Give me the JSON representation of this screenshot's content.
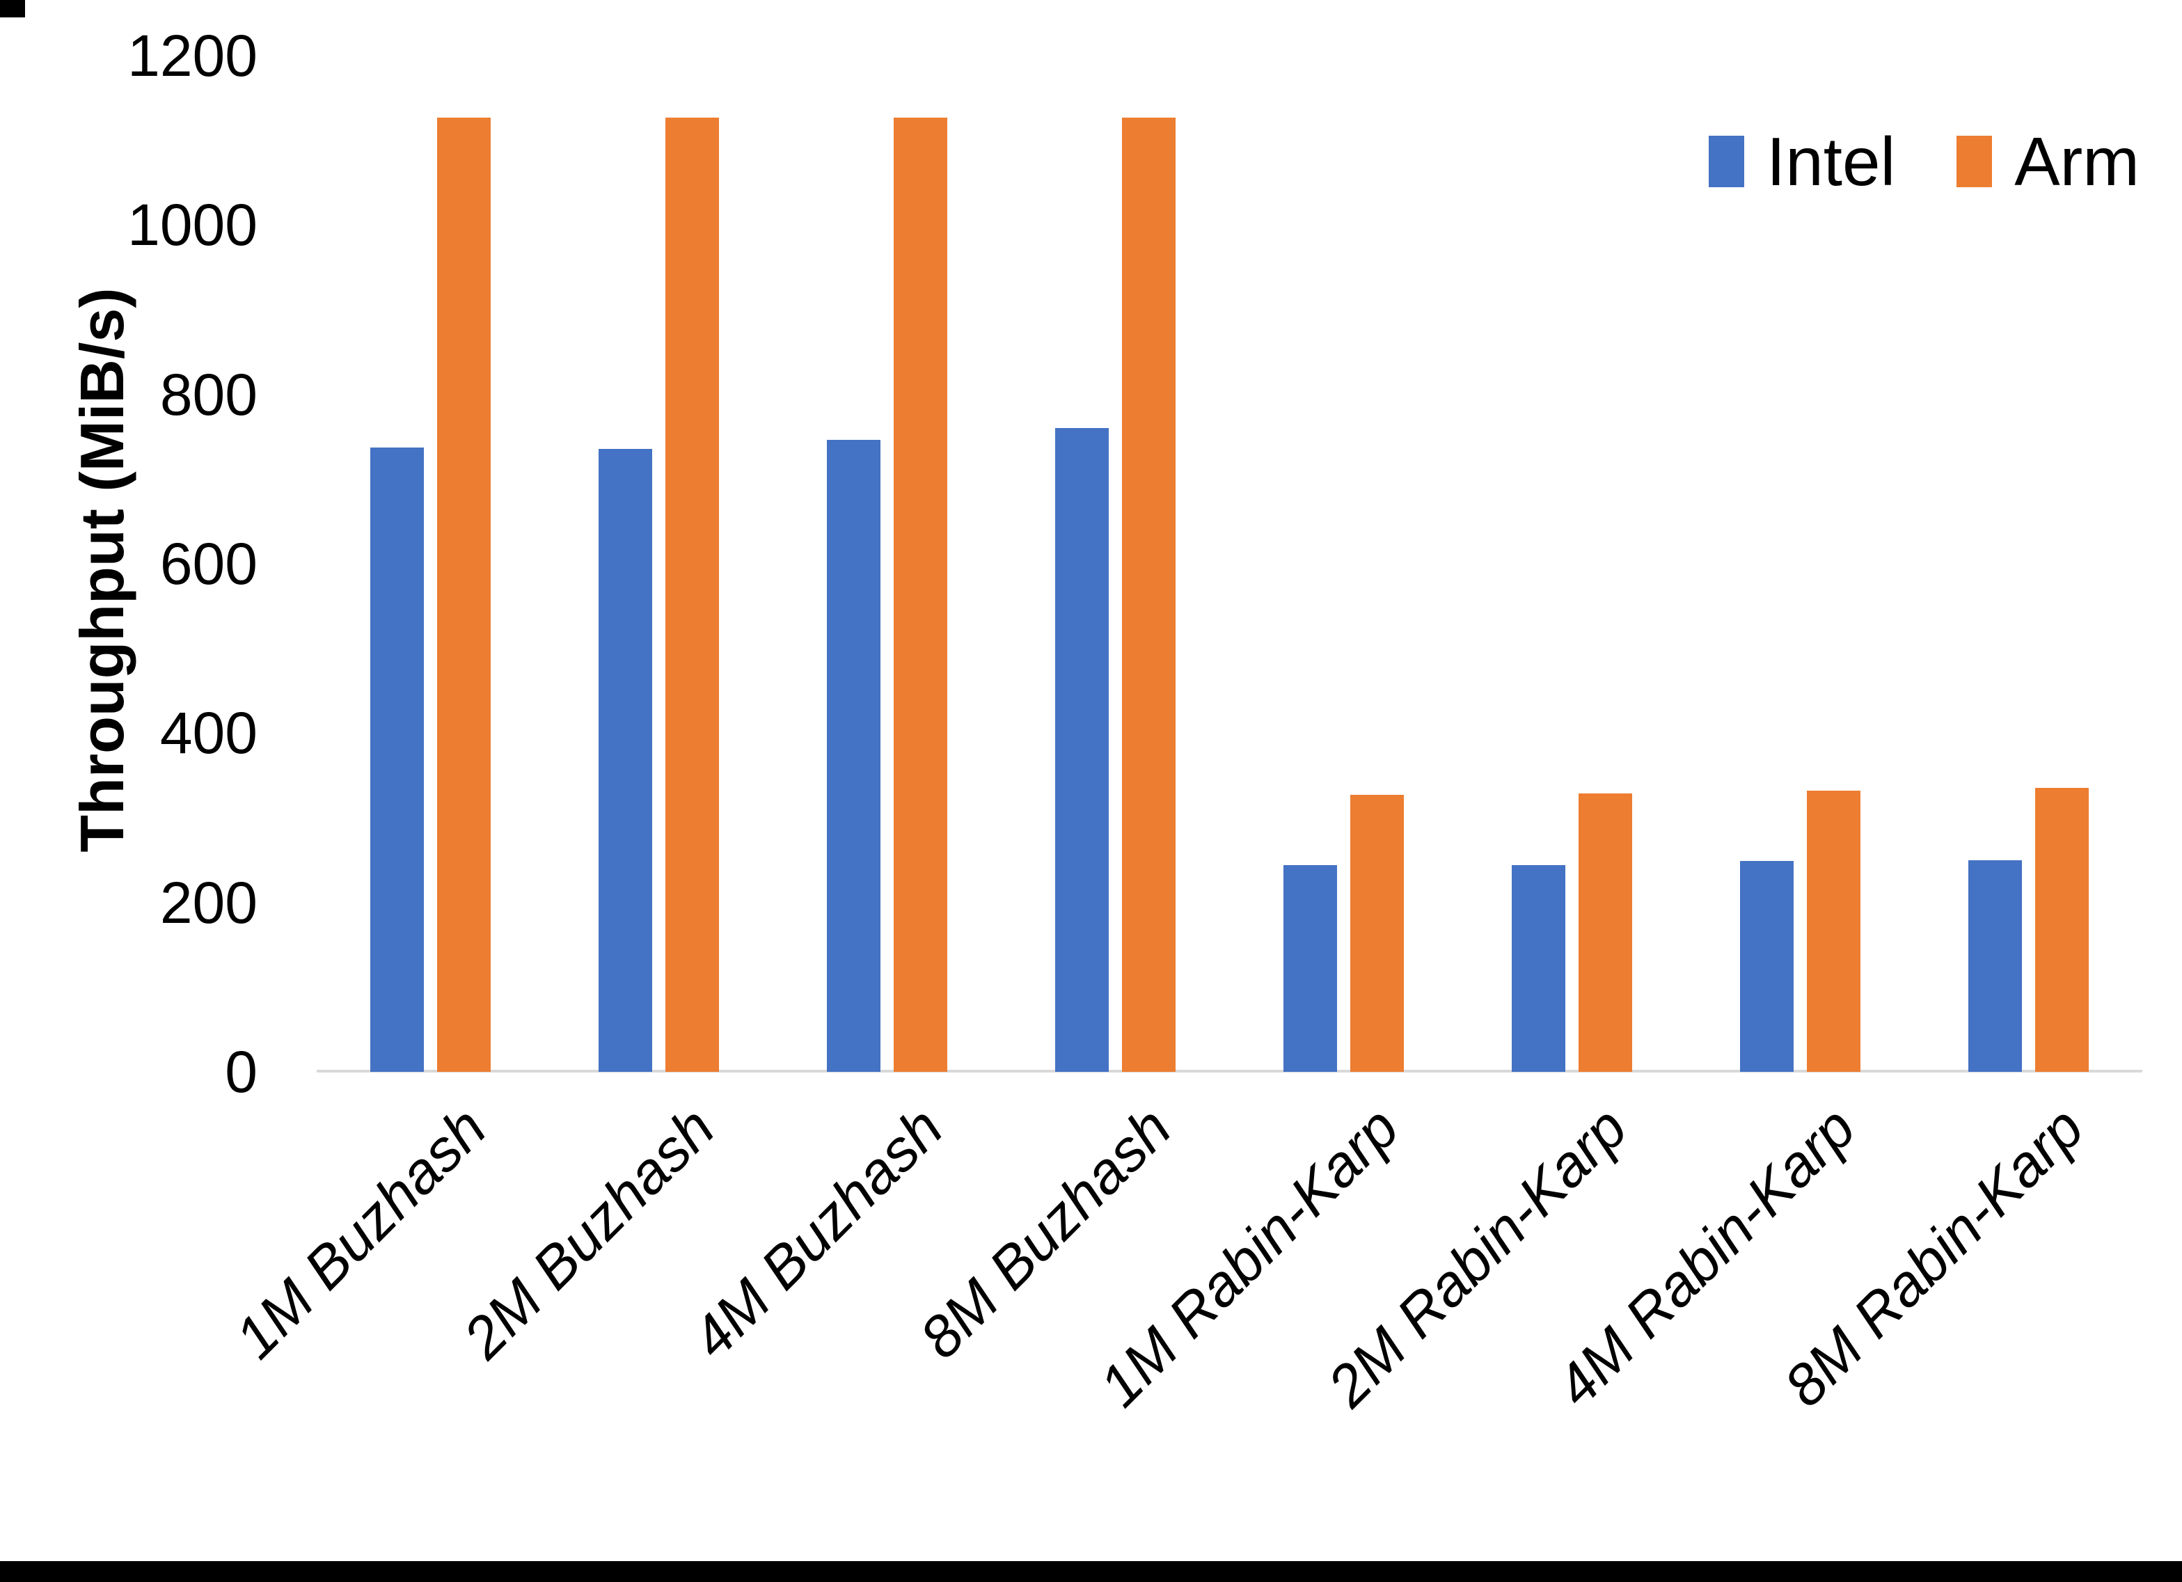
{
  "chart_data": {
    "type": "bar",
    "title": "",
    "ylabel": "Throughput (MiB/s)",
    "xlabel": "",
    "ylim": [
      0,
      1200
    ],
    "yticks": [
      0,
      200,
      400,
      600,
      800,
      1000,
      1200
    ],
    "grid": false,
    "legend_position": "top-right",
    "categories": [
      "1M Buzhash",
      "2M Buzhash",
      "4M Buzhash",
      "8M Buzhash",
      "1M Rabin-Karp",
      "2M Rabin-Karp",
      "4M Rabin-Karp",
      "8M Rabin-Karp"
    ],
    "series": [
      {
        "name": "Intel",
        "color": "#4472C4",
        "values": [
          737,
          736,
          746,
          760,
          244,
          244,
          249,
          250
        ]
      },
      {
        "name": "Arm",
        "color": "#ED7D31",
        "values": [
          1127,
          1127,
          1127,
          1127,
          327,
          329,
          332,
          335
        ]
      }
    ]
  },
  "legend": {
    "items": [
      {
        "label": "Intel",
        "color": "#4472C4"
      },
      {
        "label": "Arm",
        "color": "#ED7D31"
      }
    ]
  },
  "axis": {
    "baseline_color": "#D9D9D9",
    "text_color": "#000000"
  }
}
